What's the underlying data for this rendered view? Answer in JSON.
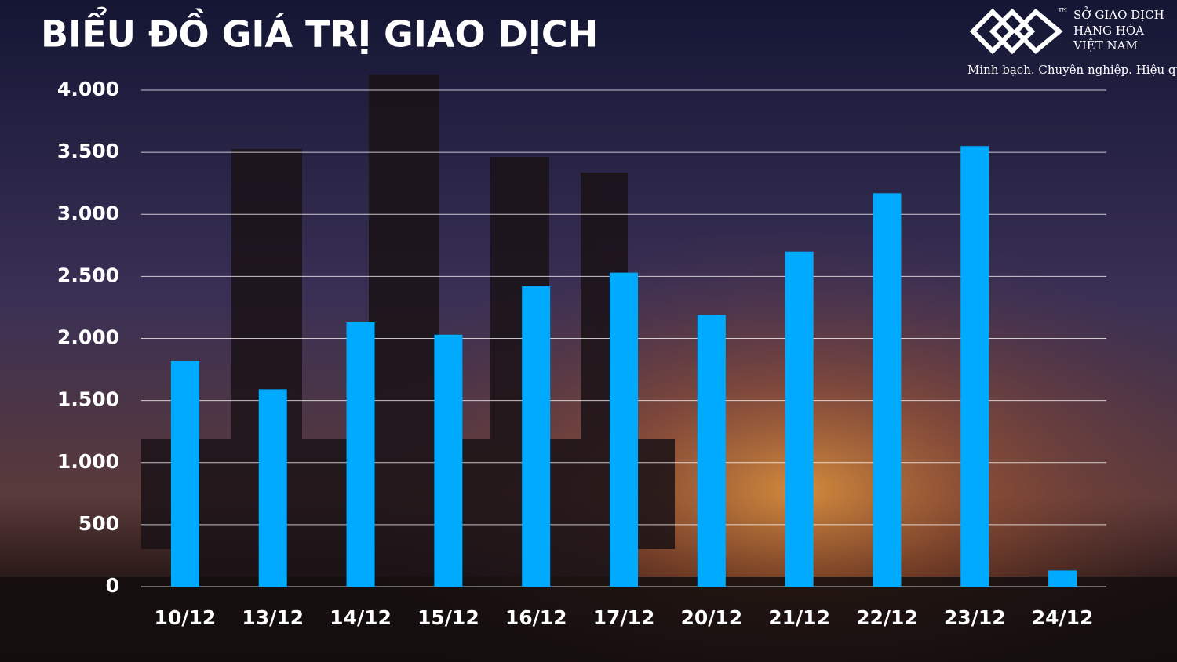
{
  "chart_data": {
    "type": "bar",
    "title": "BIỂU ĐỒ GIÁ TRỊ GIAO DỊCH",
    "categories": [
      "10/12",
      "13/12",
      "14/12",
      "15/12",
      "16/12",
      "17/12",
      "20/12",
      "21/12",
      "22/12",
      "23/12",
      "24/12"
    ],
    "values": [
      1820,
      1590,
      2130,
      2030,
      2420,
      2530,
      2190,
      2700,
      3170,
      3550,
      130
    ],
    "color": "#00aaff",
    "ylim": [
      0,
      4000
    ],
    "yticks": [
      0,
      500,
      {
        "value": 1000,
        "label": "1.000"
      },
      {
        "value": 1500,
        "label": "1.500"
      },
      {
        "value": 2000,
        "label": "2.000"
      },
      {
        "value": 2500,
        "label": "2.500"
      },
      {
        "value": 3000,
        "label": "3.000"
      },
      {
        "value": 3500,
        "label": "3.500"
      },
      {
        "value": 4000,
        "label": "4.000"
      }
    ],
    "grid": true
  },
  "logo": {
    "lines": [
      "SỞ GIAO DỊCH",
      "HÀNG HÓA",
      "VIỆT NAM"
    ],
    "trademark": "™",
    "tagline": "Minh bạch. Chuyên nghiệp. Hiệu quả"
  }
}
